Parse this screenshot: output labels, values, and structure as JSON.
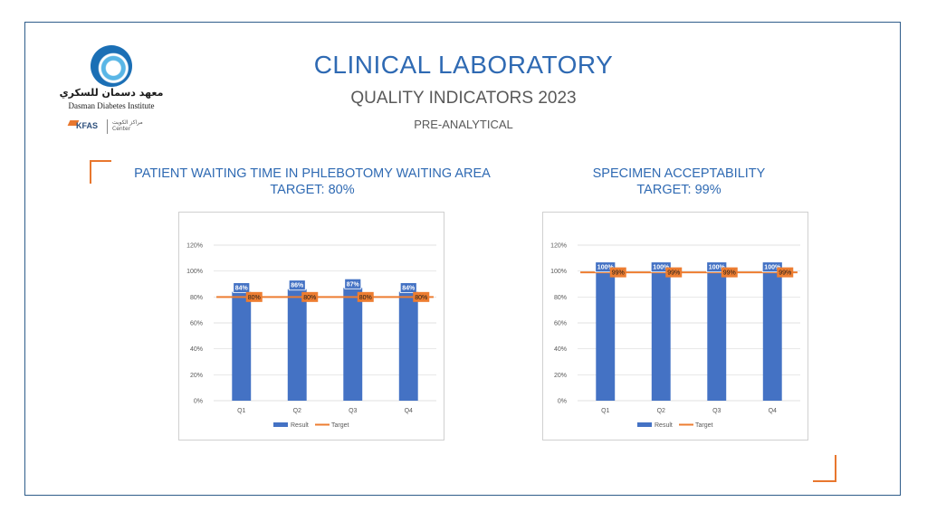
{
  "header": {
    "title": "CLINICAL LABORATORY",
    "subtitle": "QUALITY INDICATORS 2023",
    "subtitle2": "PRE-ANALYTICAL"
  },
  "logo": {
    "arabic": "معهد دسمان للسكري",
    "english": "Dasman Diabetes Institute",
    "kfas": "KFAS",
    "kfas_sub_arabic": "مراكز الكويت",
    "kfas_sub": "Center"
  },
  "colors": {
    "accent": "#e8772e",
    "bar": "#4472c4",
    "target": "#ed7d31",
    "title": "#2f6ab3",
    "frame": "#2e5c8a"
  },
  "chart_data": [
    {
      "type": "bar",
      "heading_line1": "PATIENT WAITING TIME IN PHLEBOTOMY WAITING AREA",
      "heading_line2": "TARGET: 80%",
      "categories": [
        "Q1",
        "Q2",
        "Q3",
        "Q4"
      ],
      "series": [
        {
          "name": "Result",
          "type": "bar",
          "values": [
            84,
            86,
            87,
            84
          ],
          "labels": [
            "84%",
            "86%",
            "87%",
            "84%"
          ]
        },
        {
          "name": "Target",
          "type": "line",
          "values": [
            80,
            80,
            80,
            80
          ],
          "labels": [
            "80%",
            "80%",
            "80%",
            "80%"
          ]
        }
      ],
      "yticks": [
        "0%",
        "20%",
        "40%",
        "60%",
        "80%",
        "100%",
        "120%"
      ],
      "ylim": [
        0,
        120
      ],
      "grid": true,
      "legend_position": "bottom"
    },
    {
      "type": "bar",
      "heading_line1": "SPECIMEN ACCEPTABILITY",
      "heading_line2": "TARGET: 99%",
      "categories": [
        "Q1",
        "Q2",
        "Q3",
        "Q4"
      ],
      "series": [
        {
          "name": "Result",
          "type": "bar",
          "values": [
            100,
            100,
            100,
            100
          ],
          "labels": [
            "100%",
            "100%",
            "100%",
            "100%"
          ]
        },
        {
          "name": "Target",
          "type": "line",
          "values": [
            99,
            99,
            99,
            99
          ],
          "labels": [
            "99%",
            "99%",
            "99%",
            "99%"
          ]
        }
      ],
      "yticks": [
        "0%",
        "20%",
        "40%",
        "60%",
        "80%",
        "100%",
        "120%"
      ],
      "ylim": [
        0,
        120
      ],
      "grid": true,
      "legend_position": "bottom"
    }
  ]
}
